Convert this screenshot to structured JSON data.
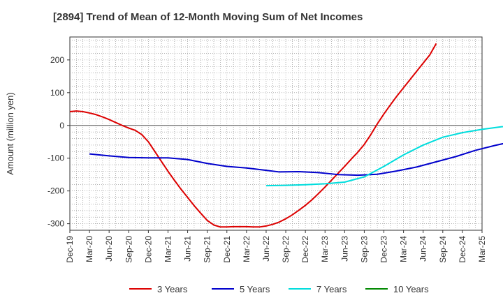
{
  "chart_data": {
    "type": "line",
    "title": "[2894]  Trend of Mean of 12-Month Moving Sum of Net Incomes",
    "xlabel": "",
    "ylabel": "Amount (million yen)",
    "ylim": [
      -320,
      270
    ],
    "yticks": [
      -300,
      -200,
      -100,
      0,
      100,
      200
    ],
    "x_tick_labels": [
      "Dec-19",
      "Mar-20",
      "Jun-20",
      "Sep-20",
      "Dec-20",
      "Mar-21",
      "Jun-21",
      "Sep-21",
      "Dec-21",
      "Mar-22",
      "Jun-22",
      "Sep-22",
      "Dec-22",
      "Mar-23",
      "Jun-23",
      "Sep-23",
      "Dec-23",
      "Mar-24",
      "Jun-24",
      "Sep-24",
      "Dec-24",
      "Mar-25"
    ],
    "grid": true,
    "legend_position": "bottom",
    "series": [
      {
        "name": "3 Years",
        "color": "#dd0000",
        "points": [
          [
            0,
            42
          ],
          [
            1,
            44
          ],
          [
            2,
            42
          ],
          [
            3,
            38
          ],
          [
            4,
            33
          ],
          [
            5,
            26
          ],
          [
            6,
            18
          ],
          [
            7,
            9
          ],
          [
            8,
            0
          ],
          [
            9,
            -8
          ],
          [
            10,
            -15
          ],
          [
            11,
            -28
          ],
          [
            12,
            -50
          ],
          [
            13,
            -80
          ],
          [
            14,
            -110
          ],
          [
            15,
            -140
          ],
          [
            16,
            -168
          ],
          [
            17,
            -195
          ],
          [
            18,
            -220
          ],
          [
            19,
            -245
          ],
          [
            20,
            -268
          ],
          [
            21,
            -290
          ],
          [
            22,
            -304
          ],
          [
            23,
            -310
          ],
          [
            24,
            -310
          ],
          [
            25,
            -309
          ],
          [
            26,
            -309
          ],
          [
            27,
            -309
          ],
          [
            28,
            -310
          ],
          [
            29,
            -310
          ],
          [
            30,
            -307
          ],
          [
            31,
            -302
          ],
          [
            32,
            -295
          ],
          [
            33,
            -285
          ],
          [
            34,
            -273
          ],
          [
            35,
            -259
          ],
          [
            36,
            -244
          ],
          [
            37,
            -227
          ],
          [
            38,
            -208
          ],
          [
            39,
            -188
          ],
          [
            40,
            -167
          ],
          [
            41,
            -146
          ],
          [
            42,
            -125
          ],
          [
            43,
            -103
          ],
          [
            44,
            -82
          ],
          [
            45,
            -58
          ],
          [
            46,
            -28
          ],
          [
            47,
            5
          ],
          [
            48,
            35
          ],
          [
            49,
            63
          ],
          [
            50,
            90
          ],
          [
            51,
            115
          ],
          [
            52,
            140
          ],
          [
            53,
            165
          ],
          [
            54,
            190
          ],
          [
            55,
            215
          ],
          [
            56,
            250
          ]
        ]
      },
      {
        "name": "5 Years",
        "color": "#0000cc",
        "points": [
          [
            3,
            -87
          ],
          [
            6,
            -93
          ],
          [
            9,
            -98
          ],
          [
            12,
            -99
          ],
          [
            15,
            -99
          ],
          [
            18,
            -104
          ],
          [
            21,
            -116
          ],
          [
            24,
            -125
          ],
          [
            27,
            -130
          ],
          [
            30,
            -137
          ],
          [
            32,
            -142
          ],
          [
            35,
            -141
          ],
          [
            38,
            -144
          ],
          [
            41,
            -150
          ],
          [
            44,
            -152
          ],
          [
            47,
            -149
          ],
          [
            50,
            -139
          ],
          [
            53,
            -127
          ],
          [
            56,
            -111
          ],
          [
            59,
            -95
          ],
          [
            62,
            -76
          ],
          [
            65,
            -61
          ],
          [
            68,
            -48
          ],
          [
            71,
            -31
          ],
          [
            73,
            -16
          ]
        ]
      },
      {
        "name": "7 Years",
        "color": "#00dddd",
        "points": [
          [
            30,
            -184
          ],
          [
            33,
            -183
          ],
          [
            36,
            -181
          ],
          [
            39,
            -178
          ],
          [
            42,
            -173
          ],
          [
            45,
            -157
          ],
          [
            48,
            -125
          ],
          [
            51,
            -90
          ],
          [
            54,
            -60
          ],
          [
            57,
            -36
          ],
          [
            60,
            -22
          ],
          [
            63,
            -12
          ],
          [
            66,
            -4
          ],
          [
            69,
            2
          ],
          [
            72,
            5
          ]
        ]
      },
      {
        "name": "10 Years",
        "color": "#008800",
        "points": []
      }
    ]
  }
}
